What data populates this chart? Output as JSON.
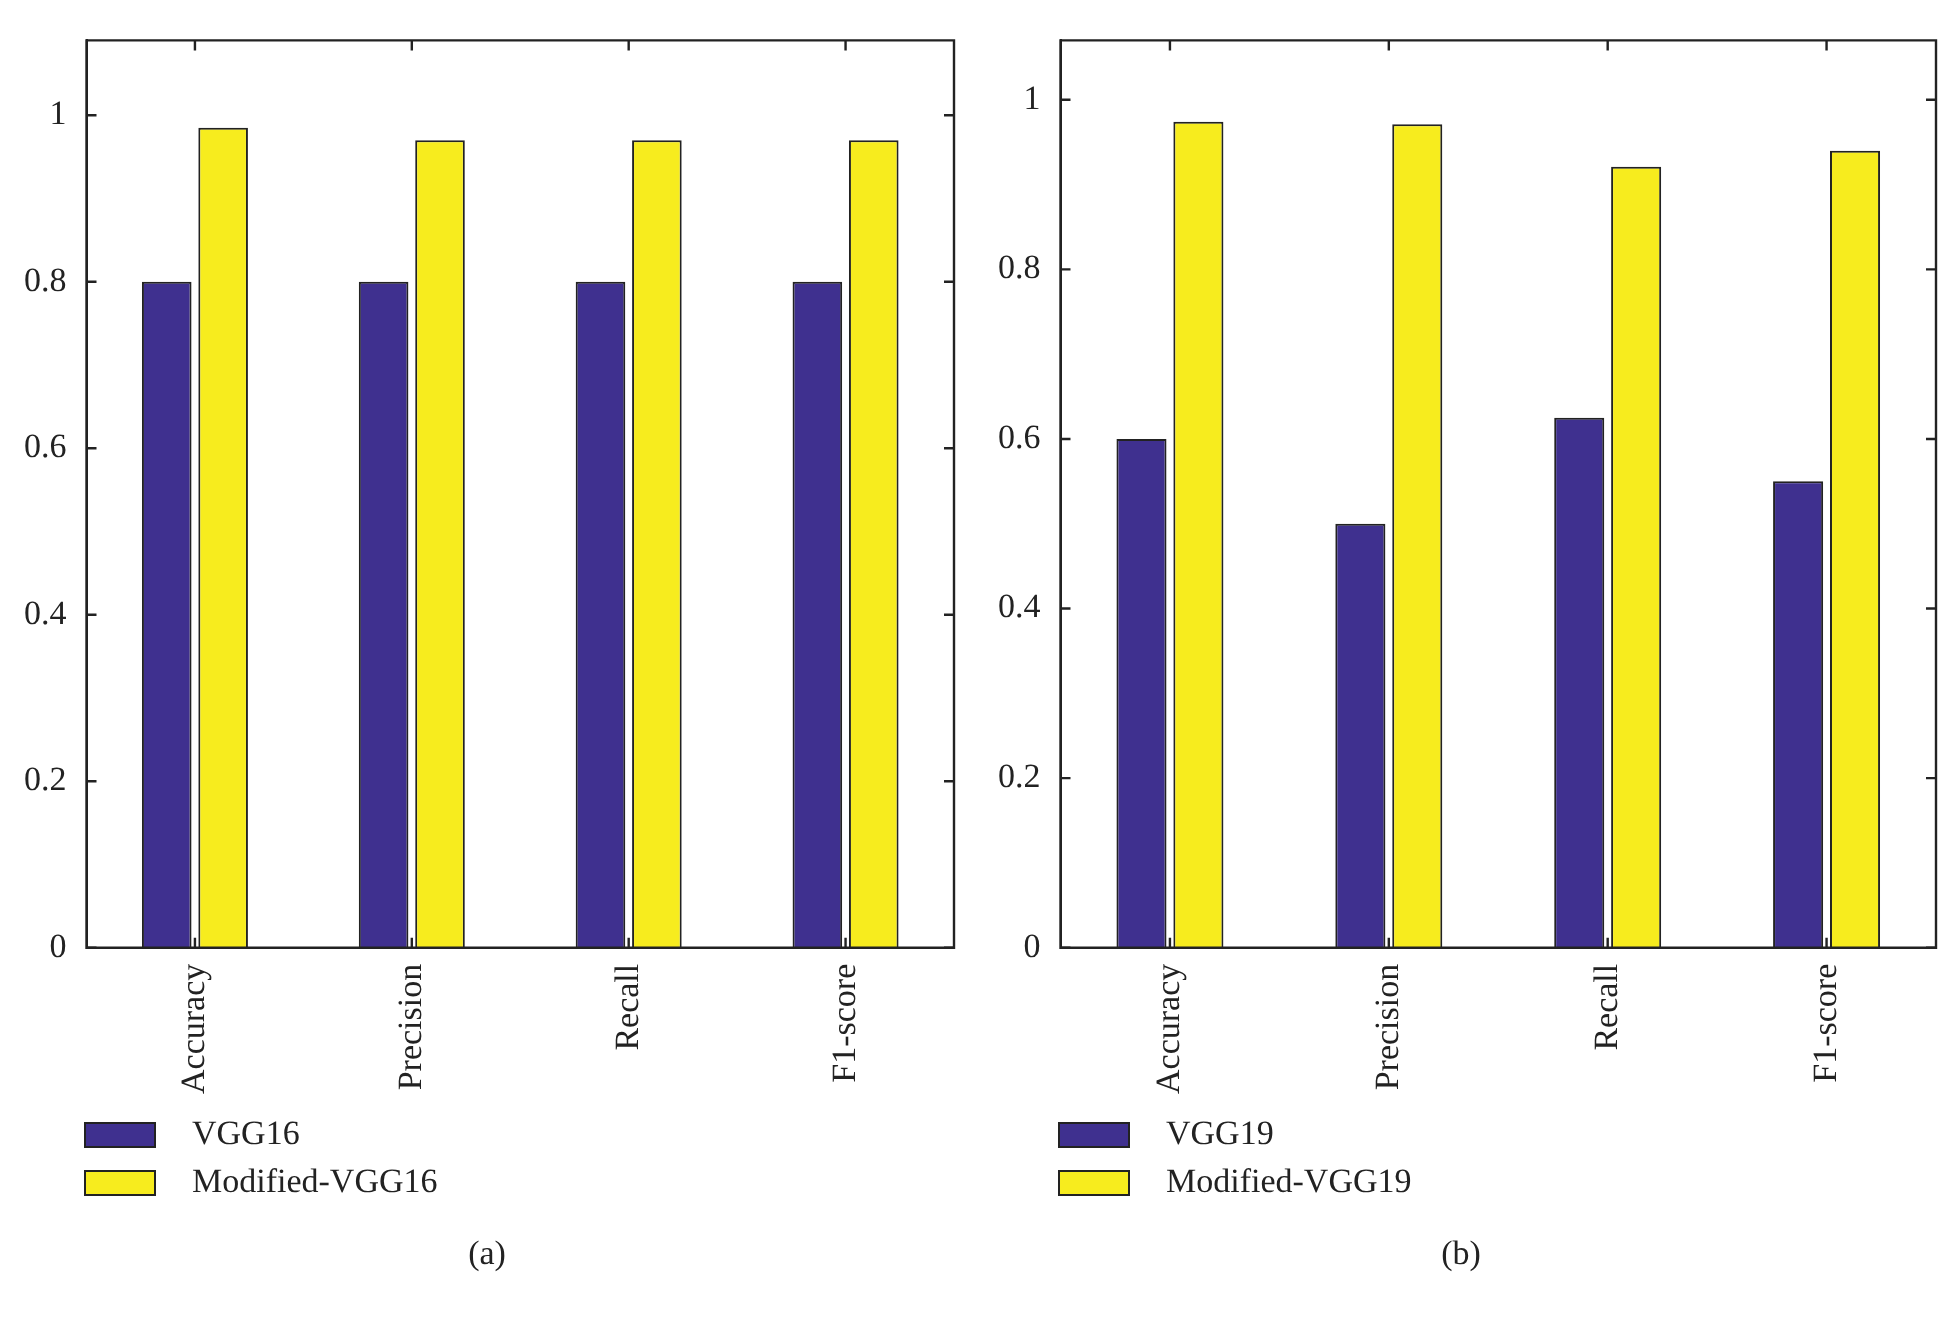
{
  "chart_data": [
    {
      "type": "bar",
      "categories": [
        "Accuracy",
        "Precision",
        "Recall",
        "F1-score"
      ],
      "series": [
        {
          "name": "VGG16",
          "color": "#3f308f",
          "values": [
            0.8,
            0.8,
            0.8,
            0.8
          ]
        },
        {
          "name": "Modified-VGG16",
          "color": "#f7ec1e",
          "values": [
            0.985,
            0.97,
            0.97,
            0.97
          ]
        }
      ],
      "ylim": [
        0,
        1.09
      ],
      "yticks": [
        0,
        0.2,
        0.4,
        0.6,
        0.8,
        1
      ],
      "grid": false,
      "legend": "bottom",
      "annotations": [
        "(a)"
      ]
    },
    {
      "type": "bar",
      "categories": [
        "Accuracy",
        "Precision",
        "Recall",
        "F1-score"
      ],
      "series": [
        {
          "name": "VGG19",
          "color": "#3f308f",
          "values": [
            0.6,
            0.5,
            0.625,
            0.55
          ]
        },
        {
          "name": "Modified-VGG19",
          "color": "#f7ec1e",
          "values": [
            0.974,
            0.971,
            0.921,
            0.94
          ]
        }
      ],
      "ylim": [
        0,
        1.07
      ],
      "yticks": [
        0,
        0.2,
        0.4,
        0.6,
        0.8,
        1
      ],
      "grid": false,
      "legend": "bottom",
      "annotations": [
        "(b)"
      ]
    }
  ]
}
